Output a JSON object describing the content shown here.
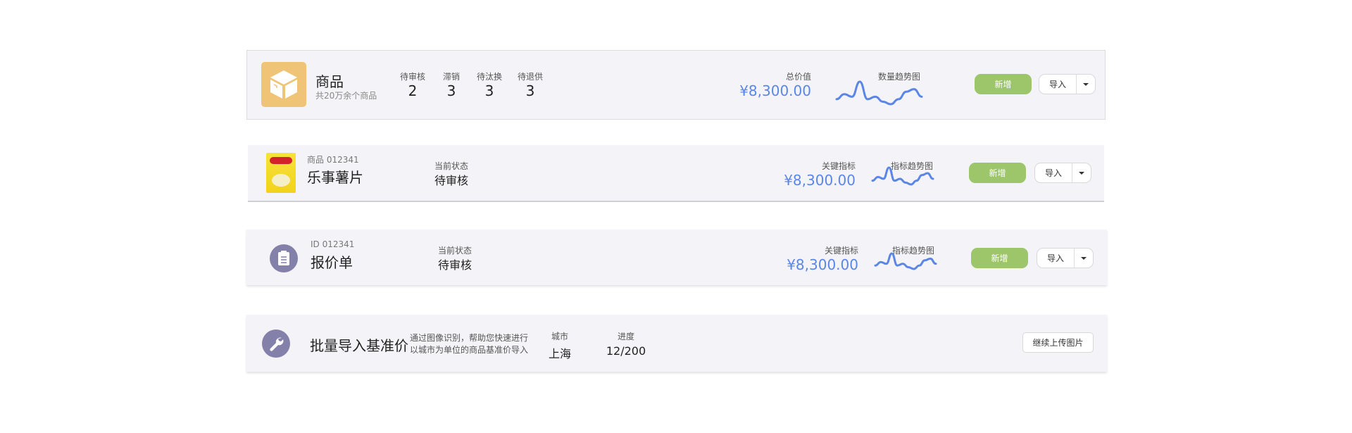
{
  "colors": {
    "accent": "#5b86e5",
    "add_button": "#9dc66b",
    "icon_bg": "#efc476",
    "circle_icon": "#8380aa"
  },
  "card1": {
    "icon": "box-icon",
    "title": "商品",
    "subtitle": "共20万余个商品",
    "stats": [
      {
        "label": "待审核",
        "value": "2"
      },
      {
        "label": "滞销",
        "value": "3"
      },
      {
        "label": "待汰换",
        "value": "3"
      },
      {
        "label": "待退供",
        "value": "3"
      }
    ],
    "metric_label": "总价值",
    "metric_value": "¥8,300.00",
    "trend_label": "数量趋势图",
    "trend": [
      2,
      4,
      3,
      9,
      2,
      3,
      1,
      0,
      2,
      5,
      6,
      3
    ],
    "add": "新增",
    "import": "导入"
  },
  "card2": {
    "image": "chips-bag-image",
    "id_text": "商品 012341",
    "title": "乐事薯片",
    "status_label": "当前状态",
    "status": "待审核",
    "metric_label": "关键指标",
    "metric_value": "¥8,300.00",
    "trend_label": "指标趋势图",
    "trend": [
      2,
      4,
      3,
      9,
      2,
      3,
      1,
      0,
      2,
      5,
      6,
      3
    ],
    "add": "新增",
    "import": "导入"
  },
  "card3": {
    "icon": "clipboard-icon",
    "id_text": "ID 012341",
    "title": "报价单",
    "status_label": "当前状态",
    "status": "待审核",
    "metric_label": "关键指标",
    "metric_value": "¥8,300.00",
    "trend_label": "指标趋势图",
    "trend": [
      2,
      4,
      3,
      9,
      2,
      3,
      1,
      0,
      2,
      5,
      6,
      3
    ],
    "add": "新增",
    "import": "导入"
  },
  "card4": {
    "icon": "wrench-icon",
    "title": "批量导入基准价",
    "desc_line1": "通过图像识别，帮助您快速进行",
    "desc_line2": "以城市为单位的商品基准价导入",
    "city_label": "城市",
    "city": "上海",
    "progress_label": "进度",
    "progress": "12/200",
    "upload": "继续上传图片"
  }
}
